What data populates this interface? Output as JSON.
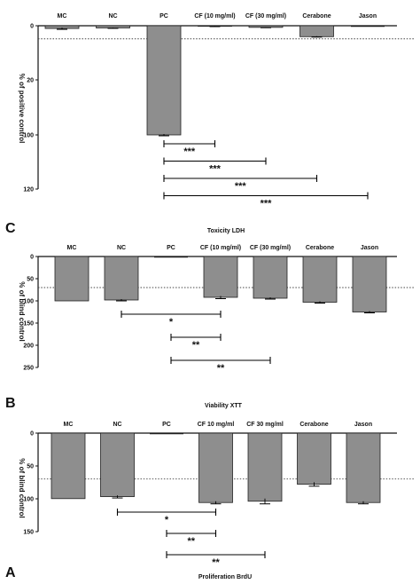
{
  "chart_data": [
    {
      "type": "bar",
      "panel_letter": "",
      "title": "",
      "ylabel": "% of positive control",
      "categories": [
        "MC",
        "NC",
        "PC",
        "CF (10 mg/ml)",
        "CF (30 mg/ml)",
        "Cerabone",
        "Jason"
      ],
      "values": [
        2.5,
        2.0,
        100,
        0.5,
        1.5,
        10,
        0
      ],
      "errors": [
        0.8,
        0.4,
        0.8,
        0.3,
        0.3,
        0.4,
        0
      ],
      "ylim": [
        0,
        120
      ],
      "yticks": [
        "0",
        "20",
        "100",
        "120"
      ],
      "reference_line": 12,
      "significance": [
        {
          "from": "PC",
          "to": "CF (10 mg/ml)",
          "label": "***"
        },
        {
          "from": "PC",
          "to": "CF (30 mg/ml)",
          "label": "***"
        },
        {
          "from": "PC",
          "to": "Cerabone",
          "label": "***"
        },
        {
          "from": "PC",
          "to": "Jason",
          "label": "***"
        }
      ]
    },
    {
      "type": "bar",
      "panel_letter": "C",
      "title": "Toxicity LDH",
      "ylabel": "% of blind control",
      "categories": [
        "MC",
        "NC",
        "PC",
        "CF (10 mg/ml)",
        "CF (30 mg/ml)",
        "Cerabone",
        "Jason"
      ],
      "values": [
        100,
        98,
        0,
        92,
        94,
        103,
        125
      ],
      "errors": [
        0,
        2,
        0,
        3,
        2,
        2,
        2
      ],
      "ylim": [
        0,
        250
      ],
      "yticks": [
        "0",
        "50",
        "100",
        "150",
        "200",
        "250"
      ],
      "reference_line": 70,
      "significance": [
        {
          "from": "NC",
          "to": "CF (10 mg/ml)",
          "label": "*"
        },
        {
          "from": "PC",
          "to": "CF (10 mg/ml)",
          "label": "**"
        },
        {
          "from": "PC",
          "to": "CF (30 mg/ml)",
          "label": "**"
        }
      ]
    },
    {
      "type": "bar",
      "panel_letter": "B",
      "title": "Viability XTT",
      "ylabel": "% of blind control",
      "categories": [
        "MC",
        "NC",
        "PC",
        "CF 10 mg/ml",
        "CF 30 mg/ml",
        "Cerabone",
        "Jason"
      ],
      "values": [
        100,
        97,
        0,
        106,
        104,
        78,
        106
      ],
      "errors": [
        0,
        2,
        0,
        2,
        4,
        3,
        2
      ],
      "ylim": [
        0,
        150
      ],
      "yticks": [
        "0",
        "50",
        "100",
        "150"
      ],
      "reference_line": 70,
      "significance": [
        {
          "from": "NC",
          "to": "CF 10 mg/ml",
          "label": "*"
        },
        {
          "from": "PC",
          "to": "CF 10 mg/ml",
          "label": "**"
        },
        {
          "from": "PC",
          "to": "CF 30 mg/ml",
          "label": "**"
        }
      ]
    },
    {
      "type": "bar",
      "panel_letter": "A",
      "title": "Proliferation BrdU",
      "ylabel": "",
      "categories": [],
      "values": [],
      "ylim": [
        0,
        150
      ],
      "yticks": []
    }
  ],
  "colors": {
    "bar_fill": "#8e8e8e",
    "bar_stroke": "#222222",
    "axis": "#111111",
    "reference_line": "#444444"
  }
}
